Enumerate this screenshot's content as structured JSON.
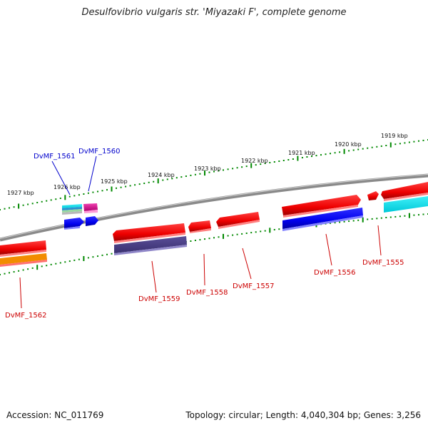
{
  "title": "Desulfovibrio vulgaris str. 'Miyazaki F', complete genome",
  "footer": {
    "accession": "Accession: NC_011769",
    "summary": "Topology: circular; Length: 4,040,304 bp; Genes: 3,256"
  },
  "kbp_labels": [
    "1927 kbp",
    "1926 kbp",
    "1925 kbp",
    "1924 kbp",
    "1923 kbp",
    "1922 kbp",
    "1921 kbp",
    "1920 kbp",
    "1919 kbp"
  ],
  "genes": {
    "forward": [
      "DvMF_1561",
      "DvMF_1560"
    ],
    "reverse": [
      "DvMF_1562",
      "DvMF_1559",
      "DvMF_1558",
      "DvMF_1557",
      "DvMF_1556",
      "DvMF_1555"
    ]
  },
  "colors": {
    "forward_label": "#0000cc",
    "reverse_label": "#cc0000",
    "gene_red": "#ee0000",
    "gene_blue": "#0000ee",
    "gene_purple": "#4b3f86",
    "gene_cyan": "#00e5ee",
    "gene_magenta": "#e01090",
    "gene_orange": "#f28c00",
    "backbone": "#8a8a8a",
    "ticks": "#008800"
  }
}
